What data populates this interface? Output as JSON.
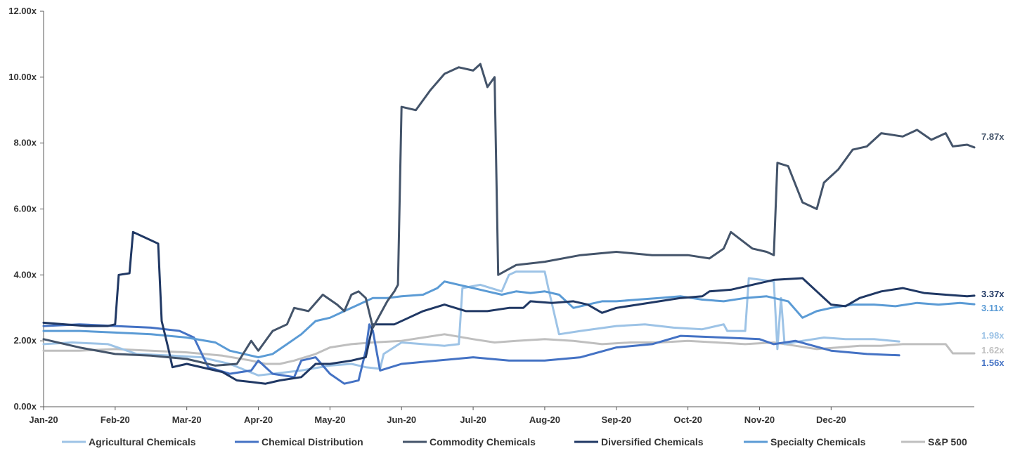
{
  "chart_data": {
    "type": "line",
    "title": "",
    "xlabel": "",
    "ylabel": "",
    "ylim": [
      0,
      12
    ],
    "y_ticks": [
      "0.00x",
      "2.00x",
      "4.00x",
      "6.00x",
      "8.00x",
      "10.00x",
      "12.00x"
    ],
    "x_ticks": [
      "Jan-20",
      "Feb-20",
      "Mar-20",
      "Apr-20",
      "May-20",
      "Jun-20",
      "Jul-20",
      "Aug-20",
      "Sep-20",
      "Oct-20",
      "Nov-20",
      "Dec-20"
    ],
    "grid": false,
    "legend_position": "bottom",
    "series": [
      {
        "name": "Agricultural Chemicals",
        "color": "#9dc3e6",
        "end_label": "1.98x",
        "points": [
          [
            0,
            1.9
          ],
          [
            0.4,
            1.95
          ],
          [
            0.9,
            1.9
          ],
          [
            1.3,
            1.6
          ],
          [
            1.8,
            1.55
          ],
          [
            2.2,
            1.5
          ],
          [
            2.6,
            1.3
          ],
          [
            3.0,
            0.95
          ],
          [
            3.2,
            1.0
          ],
          [
            3.6,
            1.1
          ],
          [
            4.0,
            1.25
          ],
          [
            4.3,
            1.3
          ],
          [
            4.5,
            1.2
          ],
          [
            4.7,
            1.15
          ],
          [
            4.75,
            1.6
          ],
          [
            5.0,
            1.95
          ],
          [
            5.3,
            1.9
          ],
          [
            5.6,
            1.85
          ],
          [
            5.8,
            1.9
          ],
          [
            5.85,
            3.6
          ],
          [
            6.1,
            3.7
          ],
          [
            6.4,
            3.5
          ],
          [
            6.5,
            4.0
          ],
          [
            6.6,
            4.1
          ],
          [
            7.0,
            4.1
          ],
          [
            7.05,
            3.6
          ],
          [
            7.2,
            2.2
          ],
          [
            7.5,
            2.3
          ],
          [
            8.0,
            2.45
          ],
          [
            8.4,
            2.5
          ],
          [
            8.8,
            2.4
          ],
          [
            9.2,
            2.35
          ],
          [
            9.5,
            2.5
          ],
          [
            9.55,
            2.3
          ],
          [
            9.8,
            2.3
          ],
          [
            9.85,
            3.9
          ],
          [
            10.2,
            3.8
          ],
          [
            10.25,
            1.75
          ],
          [
            10.3,
            3.3
          ],
          [
            10.35,
            1.9
          ],
          [
            10.6,
            2.0
          ],
          [
            10.9,
            2.1
          ],
          [
            11.2,
            2.05
          ],
          [
            11.6,
            2.05
          ],
          [
            11.95,
            1.98
          ]
        ]
      },
      {
        "name": "Chemical Distribution",
        "color": "#4472c4",
        "end_label": "1.56x",
        "points": [
          [
            0,
            2.45
          ],
          [
            0.5,
            2.5
          ],
          [
            1.0,
            2.45
          ],
          [
            1.5,
            2.4
          ],
          [
            1.9,
            2.3
          ],
          [
            2.1,
            2.1
          ],
          [
            2.3,
            1.2
          ],
          [
            2.6,
            1.0
          ],
          [
            2.9,
            1.1
          ],
          [
            3.0,
            1.4
          ],
          [
            3.2,
            1.0
          ],
          [
            3.5,
            0.9
          ],
          [
            3.6,
            1.4
          ],
          [
            3.8,
            1.5
          ],
          [
            4.0,
            1.0
          ],
          [
            4.2,
            0.7
          ],
          [
            4.4,
            0.8
          ],
          [
            4.5,
            1.7
          ],
          [
            4.55,
            2.5
          ],
          [
            4.6,
            2.3
          ],
          [
            4.7,
            1.1
          ],
          [
            5.0,
            1.3
          ],
          [
            5.5,
            1.4
          ],
          [
            6.0,
            1.5
          ],
          [
            6.5,
            1.4
          ],
          [
            7.0,
            1.4
          ],
          [
            7.5,
            1.5
          ],
          [
            8.0,
            1.8
          ],
          [
            8.5,
            1.9
          ],
          [
            8.9,
            2.15
          ],
          [
            9.5,
            2.1
          ],
          [
            10.0,
            2.05
          ],
          [
            10.2,
            1.9
          ],
          [
            10.5,
            2.0
          ],
          [
            11.0,
            1.7
          ],
          [
            11.5,
            1.6
          ],
          [
            11.95,
            1.56
          ]
        ]
      },
      {
        "name": "Commodity Chemicals",
        "color": "#44546a",
        "end_label": "7.87x",
        "points": [
          [
            0,
            2.05
          ],
          [
            0.5,
            1.8
          ],
          [
            1.0,
            1.6
          ],
          [
            1.5,
            1.55
          ],
          [
            2.0,
            1.45
          ],
          [
            2.4,
            1.25
          ],
          [
            2.7,
            1.3
          ],
          [
            2.9,
            2.0
          ],
          [
            3.0,
            1.7
          ],
          [
            3.2,
            2.3
          ],
          [
            3.4,
            2.5
          ],
          [
            3.5,
            3.0
          ],
          [
            3.7,
            2.9
          ],
          [
            3.9,
            3.4
          ],
          [
            4.1,
            3.1
          ],
          [
            4.2,
            2.9
          ],
          [
            4.3,
            3.4
          ],
          [
            4.4,
            3.5
          ],
          [
            4.5,
            3.3
          ],
          [
            4.6,
            2.4
          ],
          [
            4.8,
            3.2
          ],
          [
            4.9,
            3.5
          ],
          [
            4.95,
            3.7
          ],
          [
            5.0,
            9.1
          ],
          [
            5.2,
            9.0
          ],
          [
            5.4,
            9.6
          ],
          [
            5.6,
            10.1
          ],
          [
            5.8,
            10.3
          ],
          [
            6.0,
            10.2
          ],
          [
            6.1,
            10.4
          ],
          [
            6.2,
            9.7
          ],
          [
            6.3,
            10.0
          ],
          [
            6.35,
            4.0
          ],
          [
            6.6,
            4.3
          ],
          [
            7.0,
            4.4
          ],
          [
            7.5,
            4.6
          ],
          [
            8.0,
            4.7
          ],
          [
            8.5,
            4.6
          ],
          [
            9.0,
            4.6
          ],
          [
            9.3,
            4.5
          ],
          [
            9.5,
            4.8
          ],
          [
            9.6,
            5.3
          ],
          [
            9.9,
            4.8
          ],
          [
            10.1,
            4.7
          ],
          [
            10.2,
            4.6
          ],
          [
            10.25,
            7.4
          ],
          [
            10.4,
            7.3
          ],
          [
            10.6,
            6.2
          ],
          [
            10.8,
            6.0
          ],
          [
            10.9,
            6.8
          ],
          [
            11.1,
            7.2
          ],
          [
            11.3,
            7.8
          ],
          [
            11.5,
            7.9
          ],
          [
            11.7,
            8.3
          ],
          [
            12.0,
            8.2
          ],
          [
            12.2,
            8.4
          ],
          [
            12.4,
            8.1
          ],
          [
            12.6,
            8.3
          ],
          [
            12.7,
            7.9
          ],
          [
            12.9,
            7.95
          ],
          [
            13.0,
            7.87
          ]
        ]
      },
      {
        "name": "Diversified Chemicals",
        "color": "#203864",
        "end_label": "3.37x",
        "points": [
          [
            0,
            2.55
          ],
          [
            0.3,
            2.5
          ],
          [
            0.6,
            2.45
          ],
          [
            0.9,
            2.45
          ],
          [
            1.0,
            2.5
          ],
          [
            1.05,
            4.0
          ],
          [
            1.2,
            4.05
          ],
          [
            1.25,
            5.3
          ],
          [
            1.4,
            5.15
          ],
          [
            1.6,
            4.95
          ],
          [
            1.65,
            2.6
          ],
          [
            1.75,
            1.7
          ],
          [
            1.8,
            1.2
          ],
          [
            2.0,
            1.3
          ],
          [
            2.3,
            1.15
          ],
          [
            2.5,
            1.05
          ],
          [
            2.7,
            0.8
          ],
          [
            2.9,
            0.75
          ],
          [
            3.1,
            0.7
          ],
          [
            3.3,
            0.8
          ],
          [
            3.6,
            0.9
          ],
          [
            3.8,
            1.3
          ],
          [
            4.0,
            1.3
          ],
          [
            4.3,
            1.4
          ],
          [
            4.5,
            1.5
          ],
          [
            4.6,
            2.5
          ],
          [
            4.9,
            2.5
          ],
          [
            5.1,
            2.7
          ],
          [
            5.3,
            2.9
          ],
          [
            5.6,
            3.1
          ],
          [
            5.9,
            2.9
          ],
          [
            6.2,
            2.9
          ],
          [
            6.5,
            3.0
          ],
          [
            6.7,
            3.0
          ],
          [
            6.8,
            3.2
          ],
          [
            7.1,
            3.15
          ],
          [
            7.4,
            3.2
          ],
          [
            7.6,
            3.1
          ],
          [
            7.8,
            2.85
          ],
          [
            8.0,
            3.0
          ],
          [
            8.3,
            3.1
          ],
          [
            8.6,
            3.2
          ],
          [
            8.9,
            3.3
          ],
          [
            9.2,
            3.35
          ],
          [
            9.3,
            3.5
          ],
          [
            9.6,
            3.55
          ],
          [
            9.9,
            3.7
          ],
          [
            10.2,
            3.85
          ],
          [
            10.6,
            3.9
          ],
          [
            10.8,
            3.5
          ],
          [
            11.0,
            3.1
          ],
          [
            11.2,
            3.05
          ],
          [
            11.4,
            3.3
          ],
          [
            11.7,
            3.5
          ],
          [
            12.0,
            3.6
          ],
          [
            12.3,
            3.45
          ],
          [
            12.6,
            3.4
          ],
          [
            12.9,
            3.35
          ],
          [
            13.0,
            3.37
          ]
        ]
      },
      {
        "name": "Specialty Chemicals",
        "color": "#5b9bd5",
        "end_label": "3.11x",
        "points": [
          [
            0,
            2.3
          ],
          [
            0.5,
            2.3
          ],
          [
            1.0,
            2.25
          ],
          [
            1.5,
            2.2
          ],
          [
            2.0,
            2.1
          ],
          [
            2.4,
            1.95
          ],
          [
            2.6,
            1.7
          ],
          [
            2.8,
            1.6
          ],
          [
            3.0,
            1.5
          ],
          [
            3.2,
            1.6
          ],
          [
            3.4,
            1.9
          ],
          [
            3.6,
            2.2
          ],
          [
            3.8,
            2.6
          ],
          [
            4.0,
            2.7
          ],
          [
            4.2,
            2.9
          ],
          [
            4.3,
            3.0
          ],
          [
            4.5,
            3.2
          ],
          [
            4.6,
            3.3
          ],
          [
            4.8,
            3.3
          ],
          [
            5.0,
            3.35
          ],
          [
            5.3,
            3.4
          ],
          [
            5.5,
            3.6
          ],
          [
            5.6,
            3.8
          ],
          [
            5.8,
            3.7
          ],
          [
            6.0,
            3.6
          ],
          [
            6.2,
            3.5
          ],
          [
            6.4,
            3.4
          ],
          [
            6.6,
            3.5
          ],
          [
            6.8,
            3.45
          ],
          [
            7.0,
            3.5
          ],
          [
            7.2,
            3.4
          ],
          [
            7.4,
            3.0
          ],
          [
            7.6,
            3.1
          ],
          [
            7.8,
            3.2
          ],
          [
            8.0,
            3.2
          ],
          [
            8.3,
            3.25
          ],
          [
            8.6,
            3.3
          ],
          [
            8.9,
            3.35
          ],
          [
            9.2,
            3.25
          ],
          [
            9.5,
            3.2
          ],
          [
            9.8,
            3.3
          ],
          [
            10.1,
            3.35
          ],
          [
            10.4,
            3.2
          ],
          [
            10.6,
            2.7
          ],
          [
            10.8,
            2.9
          ],
          [
            11.0,
            3.0
          ],
          [
            11.3,
            3.1
          ],
          [
            11.6,
            3.1
          ],
          [
            11.9,
            3.05
          ],
          [
            12.2,
            3.15
          ],
          [
            12.5,
            3.1
          ],
          [
            12.8,
            3.15
          ],
          [
            13.0,
            3.11
          ]
        ]
      },
      {
        "name": "S&P 500",
        "color": "#bfbfbf",
        "end_label": "1.62x",
        "points": [
          [
            0,
            1.7
          ],
          [
            0.5,
            1.7
          ],
          [
            1.0,
            1.75
          ],
          [
            1.5,
            1.7
          ],
          [
            2.0,
            1.65
          ],
          [
            2.5,
            1.55
          ],
          [
            2.9,
            1.4
          ],
          [
            3.1,
            1.3
          ],
          [
            3.3,
            1.3
          ],
          [
            3.5,
            1.4
          ],
          [
            3.8,
            1.6
          ],
          [
            4.0,
            1.8
          ],
          [
            4.3,
            1.9
          ],
          [
            4.6,
            1.95
          ],
          [
            5.0,
            2.0
          ],
          [
            5.3,
            2.1
          ],
          [
            5.6,
            2.2
          ],
          [
            6.0,
            2.05
          ],
          [
            6.3,
            1.95
          ],
          [
            6.6,
            2.0
          ],
          [
            7.0,
            2.05
          ],
          [
            7.4,
            2.0
          ],
          [
            7.8,
            1.9
          ],
          [
            8.2,
            1.95
          ],
          [
            8.6,
            1.95
          ],
          [
            9.0,
            2.0
          ],
          [
            9.4,
            1.95
          ],
          [
            9.8,
            1.9
          ],
          [
            10.2,
            1.95
          ],
          [
            10.5,
            1.85
          ],
          [
            10.8,
            1.75
          ],
          [
            11.1,
            1.8
          ],
          [
            11.4,
            1.85
          ],
          [
            11.7,
            1.85
          ],
          [
            12.0,
            1.9
          ],
          [
            12.4,
            1.9
          ],
          [
            12.6,
            1.9
          ],
          [
            12.7,
            1.62
          ],
          [
            13.0,
            1.62
          ]
        ]
      }
    ]
  }
}
